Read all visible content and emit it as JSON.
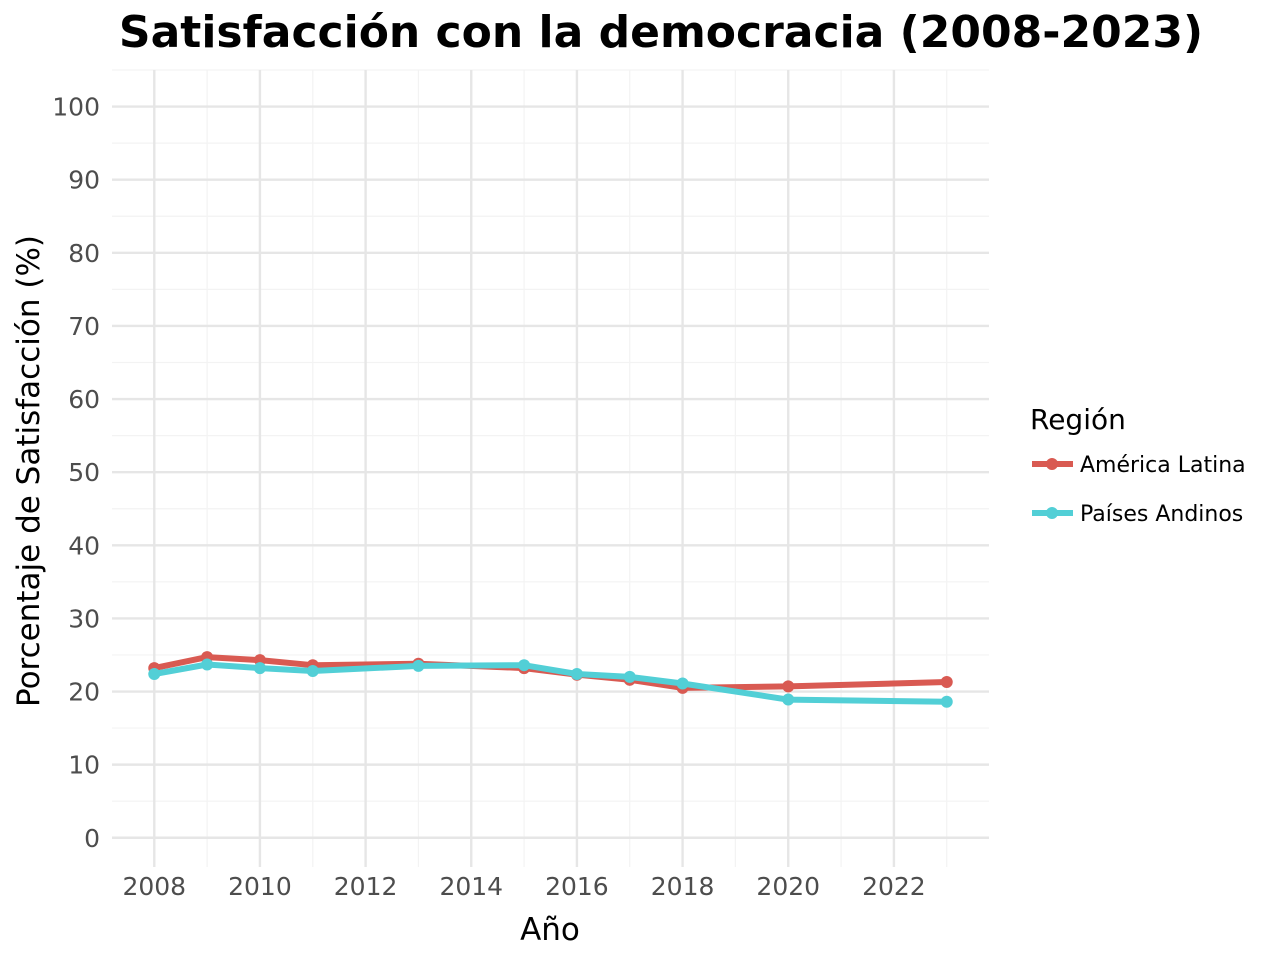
{
  "chart_data": {
    "type": "line",
    "title": "Satisfacción con la democracia (2008-2023)",
    "xlabel": "Año",
    "ylabel": "Porcentaje de Satisfacción (%)",
    "xlim": [
      2007.2,
      2023.8
    ],
    "ylim": [
      -4,
      105
    ],
    "x_ticks": [
      2008,
      2010,
      2012,
      2014,
      2016,
      2018,
      2020,
      2022
    ],
    "x_tick_labels": [
      "2008",
      "2010",
      "2012",
      "2014",
      "2016",
      "2018",
      "2020",
      "2022"
    ],
    "y_ticks": [
      0,
      10,
      20,
      30,
      40,
      50,
      60,
      70,
      80,
      90,
      100
    ],
    "y_tick_labels": [
      "0",
      "10",
      "20",
      "30",
      "40",
      "50",
      "60",
      "70",
      "80",
      "90",
      "100"
    ],
    "grid": true,
    "legend": {
      "title": "Región",
      "position": "right"
    },
    "series": [
      {
        "name": "América Latina",
        "color": "#d95a52",
        "x": [
          2008,
          2009,
          2010,
          2011,
          2013,
          2015,
          2016,
          2017,
          2018,
          2020,
          2023
        ],
        "y": [
          23.2,
          24.7,
          24.3,
          23.6,
          23.8,
          23.2,
          22.3,
          21.6,
          20.5,
          20.7,
          21.3
        ]
      },
      {
        "name": "Países Andinos",
        "color": "#52cfd6",
        "x": [
          2008,
          2009,
          2010,
          2011,
          2013,
          2015,
          2016,
          2017,
          2018,
          2020,
          2023
        ],
        "y": [
          22.4,
          23.7,
          23.2,
          22.8,
          23.5,
          23.6,
          22.4,
          22.0,
          21.1,
          18.9,
          18.6
        ]
      }
    ]
  }
}
